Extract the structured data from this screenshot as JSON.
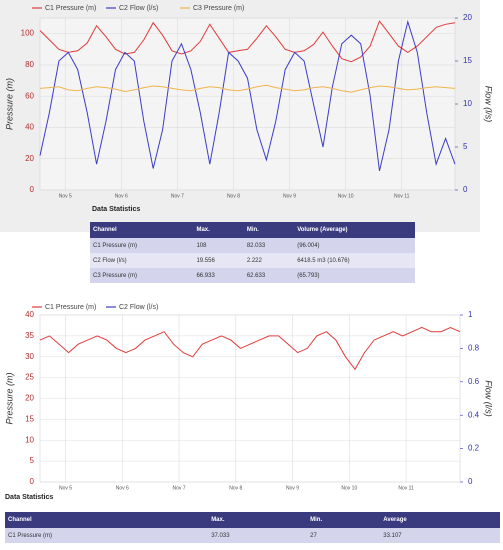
{
  "chart_data": [
    {
      "type": "line",
      "x_labels": [
        "Nov 5",
        "Nov 6",
        "Nov 7",
        "Nov 8",
        "Nov 9",
        "Nov 10",
        "Nov 11"
      ],
      "y_label": "Pressure (m)",
      "y2_label": "Flow (l/s)",
      "ylim": [
        0,
        110
      ],
      "yticks": [
        0,
        20,
        40,
        60,
        80,
        100
      ],
      "y2lim": [
        0,
        20
      ],
      "y2ticks": [
        0,
        5,
        10,
        15,
        20
      ],
      "grid": true,
      "legend": "top",
      "series": [
        {
          "name": "C1 Pressure (m)",
          "color": "#e03c3c",
          "values": [
            102,
            96,
            90,
            88,
            89,
            94,
            105,
            98,
            90,
            87,
            88,
            96,
            107,
            99,
            89,
            87,
            89,
            95,
            106,
            97,
            88,
            89,
            90,
            97,
            105,
            98,
            90,
            88,
            89,
            93,
            101,
            92,
            84,
            82.033,
            85,
            92,
            108,
            100,
            92,
            88,
            92,
            98,
            104,
            106,
            107
          ]
        },
        {
          "name": "C2 Flow (l/s)",
          "color": "#3c3cc8",
          "axis": "y2",
          "values": [
            4,
            9,
            15,
            16,
            14,
            9,
            3,
            8,
            14,
            16,
            15,
            8,
            2.5,
            7,
            15,
            17,
            14,
            9,
            3,
            9,
            16,
            15,
            13,
            7,
            3.5,
            8,
            14,
            16,
            15,
            10,
            5,
            12,
            17,
            18,
            17,
            11,
            2.222,
            7,
            15,
            19.556,
            16,
            9,
            3,
            6,
            3
          ]
        },
        {
          "name": "C3 Pressure (m)",
          "color": "#f0b44c",
          "values": [
            65,
            65.5,
            66,
            64,
            63.5,
            65,
            66,
            65.5,
            64.5,
            63,
            64,
            65.5,
            66.5,
            66,
            65,
            64,
            63.5,
            65,
            66,
            65.5,
            64,
            63.5,
            64.5,
            66,
            66.933,
            65.5,
            64.5,
            63.5,
            64,
            65.5,
            66,
            65,
            63.5,
            62.633,
            64,
            65.5,
            66.5,
            66,
            65,
            64,
            64.5,
            65.5,
            66,
            65.5,
            65
          ]
        }
      ]
    },
    {
      "type": "line",
      "x_labels": [
        "Nov 5",
        "Nov 6",
        "Nov 7",
        "Nov 8",
        "Nov 9",
        "Nov 10",
        "Nov 11"
      ],
      "y_label": "Pressure (m)",
      "y2_label": "Flow (l/s)",
      "ylim": [
        0,
        40
      ],
      "yticks": [
        0,
        5,
        10,
        15,
        20,
        25,
        30,
        35,
        40
      ],
      "y2lim": [
        0,
        1
      ],
      "y2ticks": [
        0,
        0.2,
        0.4,
        0.6,
        0.8,
        1
      ],
      "grid": true,
      "legend": "top",
      "series": [
        {
          "name": "C1 Pressure (m)",
          "color": "#e03c3c",
          "values": [
            34,
            35,
            33,
            31,
            33,
            34,
            35,
            34,
            32,
            31,
            32,
            34,
            35,
            36,
            33,
            31,
            30,
            33,
            34,
            35,
            34,
            32,
            33,
            34,
            35,
            35,
            33,
            31,
            32,
            35,
            36,
            34,
            30,
            27,
            31,
            34,
            35,
            36,
            35,
            36,
            37.033,
            36,
            36,
            37,
            36
          ]
        },
        {
          "name": "C2 Flow (l/s)",
          "color": "#3c3cc8",
          "axis": "y2",
          "values": [
            null,
            null,
            null,
            null,
            null,
            null,
            null,
            null,
            null,
            null,
            null,
            null,
            null,
            null,
            null,
            null,
            null,
            null,
            null,
            null,
            null,
            null,
            null,
            null,
            null,
            null,
            null,
            null,
            null,
            null,
            null,
            null,
            null,
            null,
            null,
            null,
            null,
            null,
            null,
            null,
            null,
            null,
            null,
            null,
            null
          ]
        }
      ]
    }
  ],
  "tables": [
    {
      "title": "Data Statistics",
      "columns": [
        "Channel",
        "Max.",
        "Min.",
        "Volume (Average)"
      ],
      "rows": [
        [
          "C1 Pressure (m)",
          "108",
          "82.033",
          "(96.004)"
        ],
        [
          "C2 Flow (l/s)",
          "19.556",
          "2.222",
          "6418.5 m3 (10.676)"
        ],
        [
          "C3 Pressure (m)",
          "66.933",
          "62.633",
          "(65.793)"
        ]
      ]
    },
    {
      "title": "Data Statistics",
      "columns": [
        "Channel",
        "Max.",
        "Min.",
        "Average"
      ],
      "rows": [
        [
          "C1 Pressure (m)",
          "37.033",
          "27",
          "33.107"
        ]
      ]
    }
  ]
}
